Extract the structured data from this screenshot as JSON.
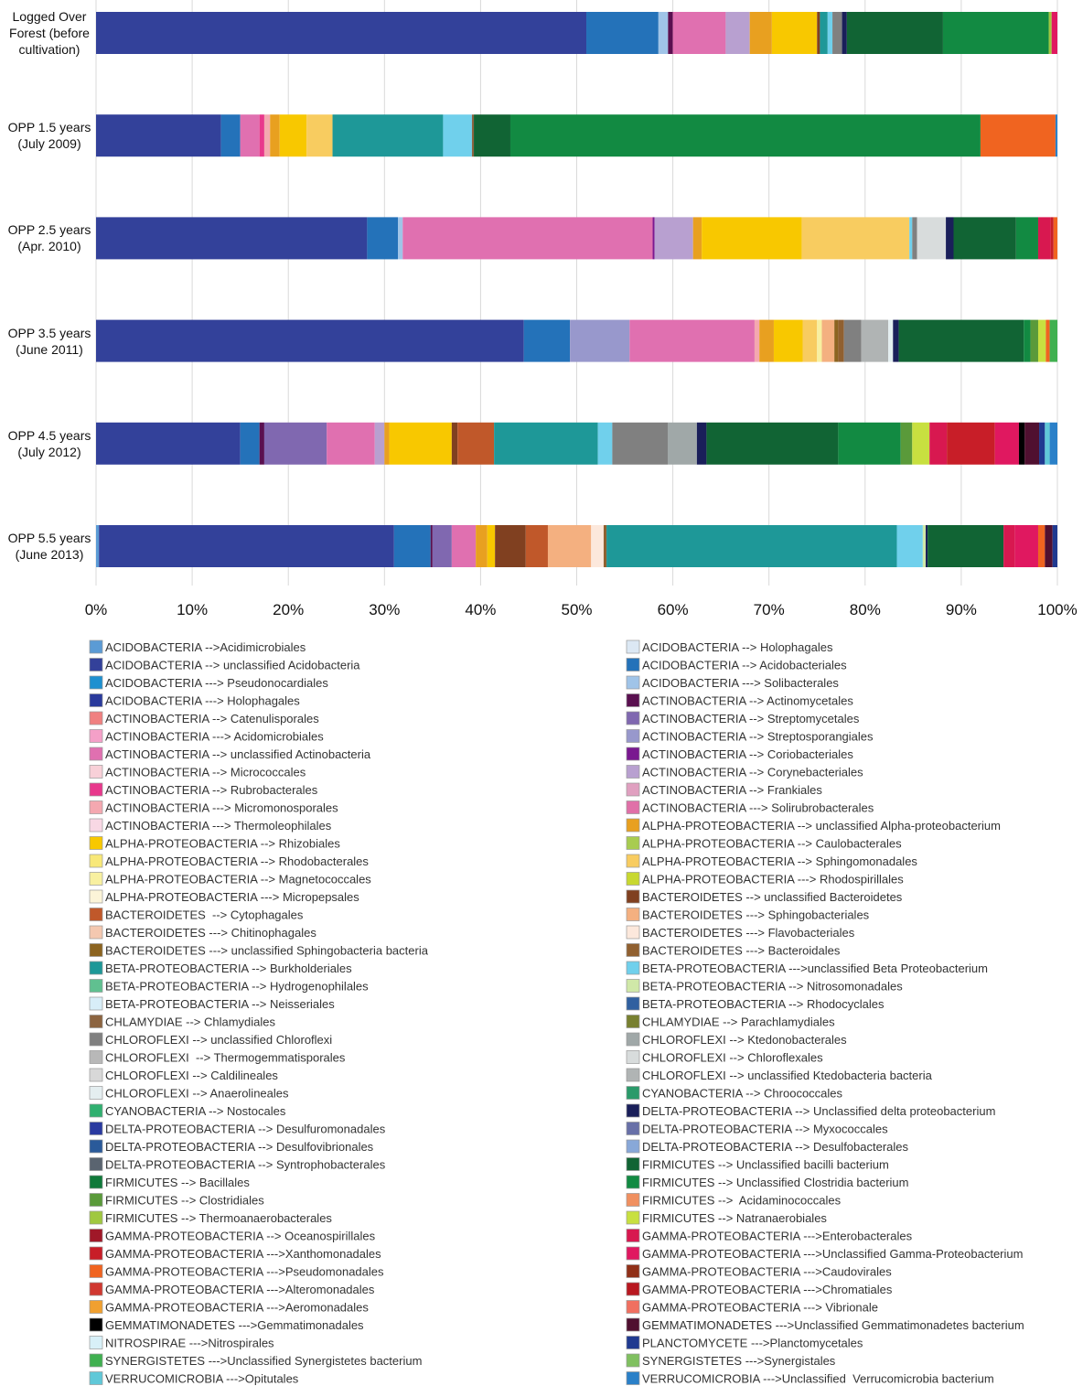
{
  "chart_data": {
    "type": "bar",
    "orientation": "horizontal",
    "stacked": true,
    "grid": true,
    "categories": [
      "Logged Over Forest (before cultivation)",
      "OPP 1.5 years (July 2009)",
      "OPP 2.5 years (Apr. 2010)",
      "OPP 3.5 years (June 2011)",
      "OPP 4.5 years (July 2012)",
      "OPP 5.5 years (June 2013)"
    ],
    "xlim": [
      0,
      100
    ],
    "xticks": [
      {
        "value": 0,
        "label": "0%"
      },
      {
        "value": 10,
        "label": "10%"
      },
      {
        "value": 20,
        "label": "20%"
      },
      {
        "value": 30,
        "label": "30%"
      },
      {
        "value": 40,
        "label": "40%"
      },
      {
        "value": 50,
        "label": "50%"
      },
      {
        "value": 60,
        "label": "60%"
      },
      {
        "value": 70,
        "label": "70%"
      },
      {
        "value": 80,
        "label": "80%"
      },
      {
        "value": 90,
        "label": "90%"
      },
      {
        "value": 100,
        "label": "100%"
      }
    ],
    "series": [
      {
        "name": "ACIDOBACTERIA -->Acidimicrobiales",
        "color": "#5b9bd5",
        "values": [
          0,
          0,
          0,
          0,
          0,
          0.3
        ]
      },
      {
        "name": "ACIDOBACTERIA --> Holophagales",
        "color": "#dce8f4",
        "values": [
          0,
          0,
          0,
          0,
          0,
          0
        ]
      },
      {
        "name": "ACIDOBACTERIA --> unclassified Acidobacteria",
        "color": "#33419a",
        "values": [
          51,
          13,
          28.2,
          44.5,
          15,
          30.7
        ]
      },
      {
        "name": "ACIDOBACTERIA --> Acidobacteriales",
        "color": "#2472b9",
        "values": [
          7.5,
          2,
          3.2,
          4.8,
          2,
          3.8
        ]
      },
      {
        "name": "ACIDOBACTERIA ---> Pseudonocardiales",
        "color": "#1e90d0",
        "values": [
          0,
          0,
          0,
          0,
          0,
          0
        ]
      },
      {
        "name": "ACIDOBACTERIA ---> Solibacterales",
        "color": "#a0c4e8",
        "values": [
          1,
          0,
          0.5,
          0,
          0,
          0
        ]
      },
      {
        "name": "ACIDOBACTERIA ---> Holophagales",
        "color": "#2a3a9c",
        "values": [
          0,
          0,
          0,
          0,
          0,
          0
        ]
      },
      {
        "name": "ACTINOBACTERIA --> Actinomycetales",
        "color": "#5a1050",
        "values": [
          0.5,
          0,
          0,
          0,
          0.5,
          0.2
        ]
      },
      {
        "name": "ACTINOBACTERIA --> Catenulisporales",
        "color": "#f08080",
        "values": [
          0,
          0,
          0,
          0,
          0,
          0
        ]
      },
      {
        "name": "ACTINOBACTERIA --> Streptomycetales",
        "color": "#8068b0",
        "values": [
          0,
          0,
          0,
          0,
          6.5,
          2
        ]
      },
      {
        "name": "ACTINOBACTERIA ---> Acidomicrobiales",
        "color": "#f4a0c8",
        "values": [
          0,
          0,
          0,
          0,
          0,
          0
        ]
      },
      {
        "name": "ACTINOBACTERIA --> Streptosporangiales",
        "color": "#9898cc",
        "values": [
          0,
          0,
          0,
          6.2,
          0,
          0
        ]
      },
      {
        "name": "ACTINOBACTERIA --> unclassified Actinobacteria",
        "color": "#e070b0",
        "values": [
          5.5,
          2,
          26,
          13,
          5,
          2.5
        ]
      },
      {
        "name": "ACTINOBACTERIA --> Coriobacteriales",
        "color": "#7a1890",
        "values": [
          0,
          0,
          0.2,
          0,
          0,
          0
        ]
      },
      {
        "name": "ACTINOBACTERIA --> Micrococcales",
        "color": "#f8d0d8",
        "values": [
          0,
          0,
          0,
          0,
          0,
          0
        ]
      },
      {
        "name": "ACTINOBACTERIA --> Corynebacteriales",
        "color": "#b8a0d0",
        "values": [
          2.5,
          0,
          4,
          0,
          1,
          0
        ]
      },
      {
        "name": "ACTINOBACTERIA --> Rubrobacterales",
        "color": "#e8388c",
        "values": [
          0,
          0.5,
          0,
          0,
          0,
          0
        ]
      },
      {
        "name": "ACTINOBACTERIA --> Frankiales",
        "color": "#e0a0c0",
        "values": [
          0,
          0,
          0,
          0,
          0,
          0
        ]
      },
      {
        "name": "ACTINOBACTERIA ---> Micromonosporales",
        "color": "#f4a8b0",
        "values": [
          0,
          0.6,
          0,
          0.5,
          0,
          0
        ]
      },
      {
        "name": "ACTINOBACTERIA ---> Solirubrobacterales",
        "color": "#e070a8",
        "values": [
          0,
          0,
          0,
          0,
          0,
          0
        ]
      },
      {
        "name": "ACTINOBACTERIA ---> Thermoleophilales",
        "color": "#f8d8e4",
        "values": [
          0,
          0,
          0,
          0,
          0,
          0
        ]
      },
      {
        "name": "ALPHA-PROTEOBACTERIA --> unclassified Alpha-proteobacterium",
        "color": "#e8a020",
        "values": [
          2.3,
          1,
          0.9,
          1.5,
          0.5,
          1.2
        ]
      },
      {
        "name": "ALPHA-PROTEOBACTERIA --> Rhizobiales",
        "color": "#f8c800",
        "values": [
          4.7,
          2.8,
          10.4,
          3,
          6.5,
          0.8
        ]
      },
      {
        "name": "ALPHA-PROTEOBACTERIA --> Caulobacterales",
        "color": "#a8cc50",
        "values": [
          0,
          0,
          0,
          0,
          0,
          0
        ]
      },
      {
        "name": "ALPHA-PROTEOBACTERIA --> Rhodobacterales",
        "color": "#f8e878",
        "values": [
          0,
          0,
          0,
          0,
          0,
          0
        ]
      },
      {
        "name": "ALPHA-PROTEOBACTERIA --> Sphingomonadales",
        "color": "#f8cc60",
        "values": [
          0,
          2.7,
          11.2,
          1.5,
          0,
          0
        ]
      },
      {
        "name": "ALPHA-PROTEOBACTERIA --> Magnetococcales",
        "color": "#f8f0a0",
        "values": [
          0,
          0,
          0,
          0.5,
          0,
          0
        ]
      },
      {
        "name": "ALPHA-PROTEOBACTERIA ---> Rhodospirillales",
        "color": "#c8d830",
        "values": [
          0,
          0,
          0,
          0,
          0,
          0
        ]
      },
      {
        "name": "ALPHA-PROTEOBACTERIA ---> Micropepsales",
        "color": "#fcf4d8",
        "values": [
          0,
          0,
          0,
          0,
          0,
          0
        ]
      },
      {
        "name": "BACTEROIDETES --> unclassified Bacteroidetes",
        "color": "#804020",
        "values": [
          0.3,
          0,
          0,
          0,
          0.6,
          3.2
        ]
      },
      {
        "name": "BACTEROIDETES  --> Cytophagales",
        "color": "#c0582a",
        "values": [
          0,
          0,
          0,
          0,
          3.8,
          2.3
        ]
      },
      {
        "name": "BACTEROIDETES ---> Sphingobacteriales",
        "color": "#f4b080",
        "values": [
          0,
          0,
          0,
          1.3,
          0,
          4.5
        ]
      },
      {
        "name": "BACTEROIDETES ---> Chitinophagales",
        "color": "#f4c8b0",
        "values": [
          0,
          0,
          0,
          0,
          0,
          0
        ]
      },
      {
        "name": "BACTEROIDETES ---> Flavobacteriales",
        "color": "#fce8dc",
        "values": [
          0,
          0,
          0,
          0,
          0,
          1.3
        ]
      },
      {
        "name": "BACTEROIDETES ---> unclassified Sphingobacteria bacteria",
        "color": "#8c6420",
        "values": [
          0,
          0,
          0,
          0.4,
          0,
          0
        ]
      },
      {
        "name": "BACTEROIDETES ---> Bacteroidales",
        "color": "#906030",
        "values": [
          0,
          0,
          0,
          0.6,
          0,
          0.3
        ]
      },
      {
        "name": "BETA-PROTEOBACTERIA --> Burkholderiales",
        "color": "#1e9898",
        "values": [
          0.8,
          11.5,
          0,
          0,
          10.8,
          30.2
        ]
      },
      {
        "name": "BETA-PROTEOBACTERIA --->unclassified Beta Proteobacterium",
        "color": "#70d0ec",
        "values": [
          0.5,
          3,
          0.3,
          0,
          1.5,
          2.7
        ]
      },
      {
        "name": "BETA-PROTEOBACTERIA --> Hydrogenophilales",
        "color": "#60c090",
        "values": [
          0,
          0,
          0,
          0,
          0,
          0
        ]
      },
      {
        "name": "BETA-PROTEOBACTERIA --> Nitrosomonadales",
        "color": "#d0e8a8",
        "values": [
          0,
          0,
          0,
          0,
          0,
          0.3
        ]
      },
      {
        "name": "BETA-PROTEOBACTERIA --> Neisseriales",
        "color": "#d8eef8",
        "values": [
          0,
          0,
          0,
          0,
          0,
          0
        ]
      },
      {
        "name": "BETA-PROTEOBACTERIA --> Rhodocyclales",
        "color": "#3060a0",
        "values": [
          0,
          0,
          0,
          0,
          0,
          0
        ]
      },
      {
        "name": "CHLAMYDIAE --> Chlamydiales",
        "color": "#8c6440",
        "values": [
          0,
          0.2,
          0,
          0,
          0,
          0
        ]
      },
      {
        "name": "CHLAMYDIAE --> Parachlamydiales",
        "color": "#788030",
        "values": [
          0,
          0,
          0,
          0,
          0,
          0
        ]
      },
      {
        "name": "CHLOROFLEXI --> unclassified Chloroflexi",
        "color": "#808080",
        "values": [
          1,
          0,
          0.5,
          1.8,
          5.8,
          0
        ]
      },
      {
        "name": "CHLOROFLEXI --> Ktedonobacterales",
        "color": "#a0a8a8",
        "values": [
          0,
          0,
          0,
          0,
          3,
          0
        ]
      },
      {
        "name": "CHLOROFLEXI  --> Thermogemmatisporales",
        "color": "#b8b8b8",
        "values": [
          0,
          0,
          0,
          0,
          0,
          0
        ]
      },
      {
        "name": "CHLOROFLEXI --> Chloroflexales",
        "color": "#d8dcdc",
        "values": [
          0,
          0,
          3,
          0,
          0,
          0
        ]
      },
      {
        "name": "CHLOROFLEXI --> Caldilineales",
        "color": "#d8d8d8",
        "values": [
          0,
          0,
          0,
          0,
          0,
          0
        ]
      },
      {
        "name": "CHLOROFLEXI --> unclassified Ktedobacteria bacteria",
        "color": "#b0b4b4",
        "values": [
          0,
          0,
          0,
          2.8,
          0,
          0
        ]
      },
      {
        "name": "CHLOROFLEXI --> Anaerolineales",
        "color": "#e4eef0",
        "values": [
          0,
          0,
          0,
          0.5,
          0,
          0
        ]
      },
      {
        "name": "CYANOBACTERIA --> Chroococcales",
        "color": "#2a9a6a",
        "values": [
          0,
          0,
          0,
          0,
          0,
          0
        ]
      },
      {
        "name": "CYANOBACTERIA --> Nostocales",
        "color": "#30b070",
        "values": [
          0,
          0,
          0,
          0,
          0,
          0
        ]
      },
      {
        "name": "DELTA-PROTEOBACTERIA --> Unclassified delta proteobacterium",
        "color": "#1a1f5a",
        "values": [
          0.5,
          0,
          0.8,
          0.6,
          1,
          0.2
        ]
      },
      {
        "name": "DELTA-PROTEOBACTERIA --> Desulfuromonadales",
        "color": "#2a3aa0",
        "values": [
          0,
          0,
          0,
          0,
          0,
          0
        ]
      },
      {
        "name": "DELTA-PROTEOBACTERIA --> Myxococcales",
        "color": "#6870a8",
        "values": [
          0,
          0,
          0,
          0,
          0,
          0
        ]
      },
      {
        "name": "DELTA-PROTEOBACTERIA --> Desulfovibrionales",
        "color": "#2a5a9a",
        "values": [
          0,
          0,
          0,
          0,
          0,
          0
        ]
      },
      {
        "name": "DELTA-PROTEOBACTERIA --> Desulfobacterales",
        "color": "#88a8d8",
        "values": [
          0,
          0,
          0,
          0,
          0,
          0
        ]
      },
      {
        "name": "DELTA-PROTEOBACTERIA --> Syntrophobacterales",
        "color": "#5a6470",
        "values": [
          0,
          0,
          0,
          0,
          0,
          0
        ]
      },
      {
        "name": "FIRMICUTES --> Unclassified bacilli bacterium",
        "color": "#116434",
        "values": [
          10,
          3.8,
          6.5,
          13,
          13.7,
          7.9
        ]
      },
      {
        "name": "FIRMICUTES --> Bacillales",
        "color": "#107a3a",
        "values": [
          0,
          0,
          0,
          0,
          0,
          0
        ]
      },
      {
        "name": "FIRMICUTES --> Unclassified Clostridia bacterium",
        "color": "#128a42",
        "values": [
          11,
          48.9,
          2.3,
          0.7,
          6.5,
          0
        ]
      },
      {
        "name": "FIRMICUTES --> Clostridiales",
        "color": "#5a9a3a",
        "values": [
          0,
          0,
          0,
          0.8,
          1.2,
          0
        ]
      },
      {
        "name": "FIRMICUTES -->  Acidaminococcales",
        "color": "#f09060",
        "values": [
          0,
          0,
          0,
          0,
          0,
          0
        ]
      },
      {
        "name": "FIRMICUTES --> Thermoanaerobacterales",
        "color": "#a0c840",
        "values": [
          0.3,
          0,
          0,
          0,
          0,
          0
        ]
      },
      {
        "name": "FIRMICUTES --> Natranaerobiales",
        "color": "#c8e040",
        "values": [
          0,
          0,
          0,
          0.8,
          1.8,
          0
        ]
      },
      {
        "name": "GAMMA-PROTEOBACTERIA --> Oceanospirillales",
        "color": "#a01828",
        "values": [
          0,
          0,
          0,
          0,
          0,
          0
        ]
      },
      {
        "name": "GAMMA-PROTEOBACTERIA --->Enterobacterales",
        "color": "#d81850",
        "values": [
          0,
          0,
          1.3,
          0,
          1.8,
          1.2
        ]
      },
      {
        "name": "GAMMA-PROTEOBACTERIA --->Xanthomonadales",
        "color": "#c81e28",
        "values": [
          0,
          0,
          0.3,
          0,
          5,
          0
        ]
      },
      {
        "name": "GAMMA-PROTEOBACTERIA --->Unclassified Gamma-Proteobacterium",
        "color": "#e01860",
        "values": [
          0.6,
          0,
          0,
          0,
          2.5,
          2.4
        ]
      },
      {
        "name": "GAMMA-PROTEOBACTERIA --->Pseudomonadales",
        "color": "#f06420",
        "values": [
          0,
          7.8,
          0.4,
          0.4,
          0,
          0.7
        ]
      },
      {
        "name": "GAMMA-PROTEOBACTERIA --->Caudovirales",
        "color": "#903018",
        "values": [
          0,
          0,
          0,
          0,
          0,
          0
        ]
      },
      {
        "name": "GAMMA-PROTEOBACTERIA --->Alteromonadales",
        "color": "#d03830",
        "values": [
          0,
          0,
          0,
          0,
          0,
          0
        ]
      },
      {
        "name": "GAMMA-PROTEOBACTERIA --->Chromatiales",
        "color": "#b81820",
        "values": [
          0,
          0,
          0,
          0,
          0,
          0
        ]
      },
      {
        "name": "GAMMA-PROTEOBACTERIA --->Aeromonadales",
        "color": "#f0a030",
        "values": [
          0,
          0,
          0,
          0,
          0,
          0
        ]
      },
      {
        "name": "GAMMA-PROTEOBACTERIA ---> Vibrionale",
        "color": "#f07060",
        "values": [
          0,
          0,
          0,
          0,
          0,
          0
        ]
      },
      {
        "name": "GEMMATIMONADETES --->Gemmatimonadales",
        "color": "#000000",
        "values": [
          0,
          0,
          0,
          0,
          0.6,
          0
        ]
      },
      {
        "name": "GEMMATIMONADETES --->Unclassified Gemmatimonadetes bacterium",
        "color": "#501030",
        "values": [
          0,
          0,
          0,
          0,
          1.5,
          0.8
        ]
      },
      {
        "name": "NITROSPIRAE --->Nitrospirales",
        "color": "#d8f0f8",
        "values": [
          0,
          0,
          0,
          0,
          0,
          0
        ]
      },
      {
        "name": "PLANCTOMYCETE --->Planctomycetales",
        "color": "#203a90",
        "values": [
          0,
          0,
          0,
          0,
          0.6,
          0.5
        ]
      },
      {
        "name": "SYNERGISTETES --->Unclassified Synergistetes bacterium",
        "color": "#40b050",
        "values": [
          0,
          0,
          0,
          0.8,
          0,
          0
        ]
      },
      {
        "name": "SYNERGISTETES --->Synergistales",
        "color": "#80c060",
        "values": [
          0,
          0,
          0,
          0,
          0,
          0
        ]
      },
      {
        "name": "VERRUCOMICROBIA --->Opitutales",
        "color": "#60c8d8",
        "values": [
          0,
          0,
          0,
          0,
          0.5,
          0
        ]
      },
      {
        "name": "VERRUCOMICROBIA --->Unclassified  Verrucomicrobia bacterium",
        "color": "#2a80c8",
        "values": [
          0,
          0.2,
          0,
          0,
          0.8,
          0
        ]
      }
    ]
  }
}
